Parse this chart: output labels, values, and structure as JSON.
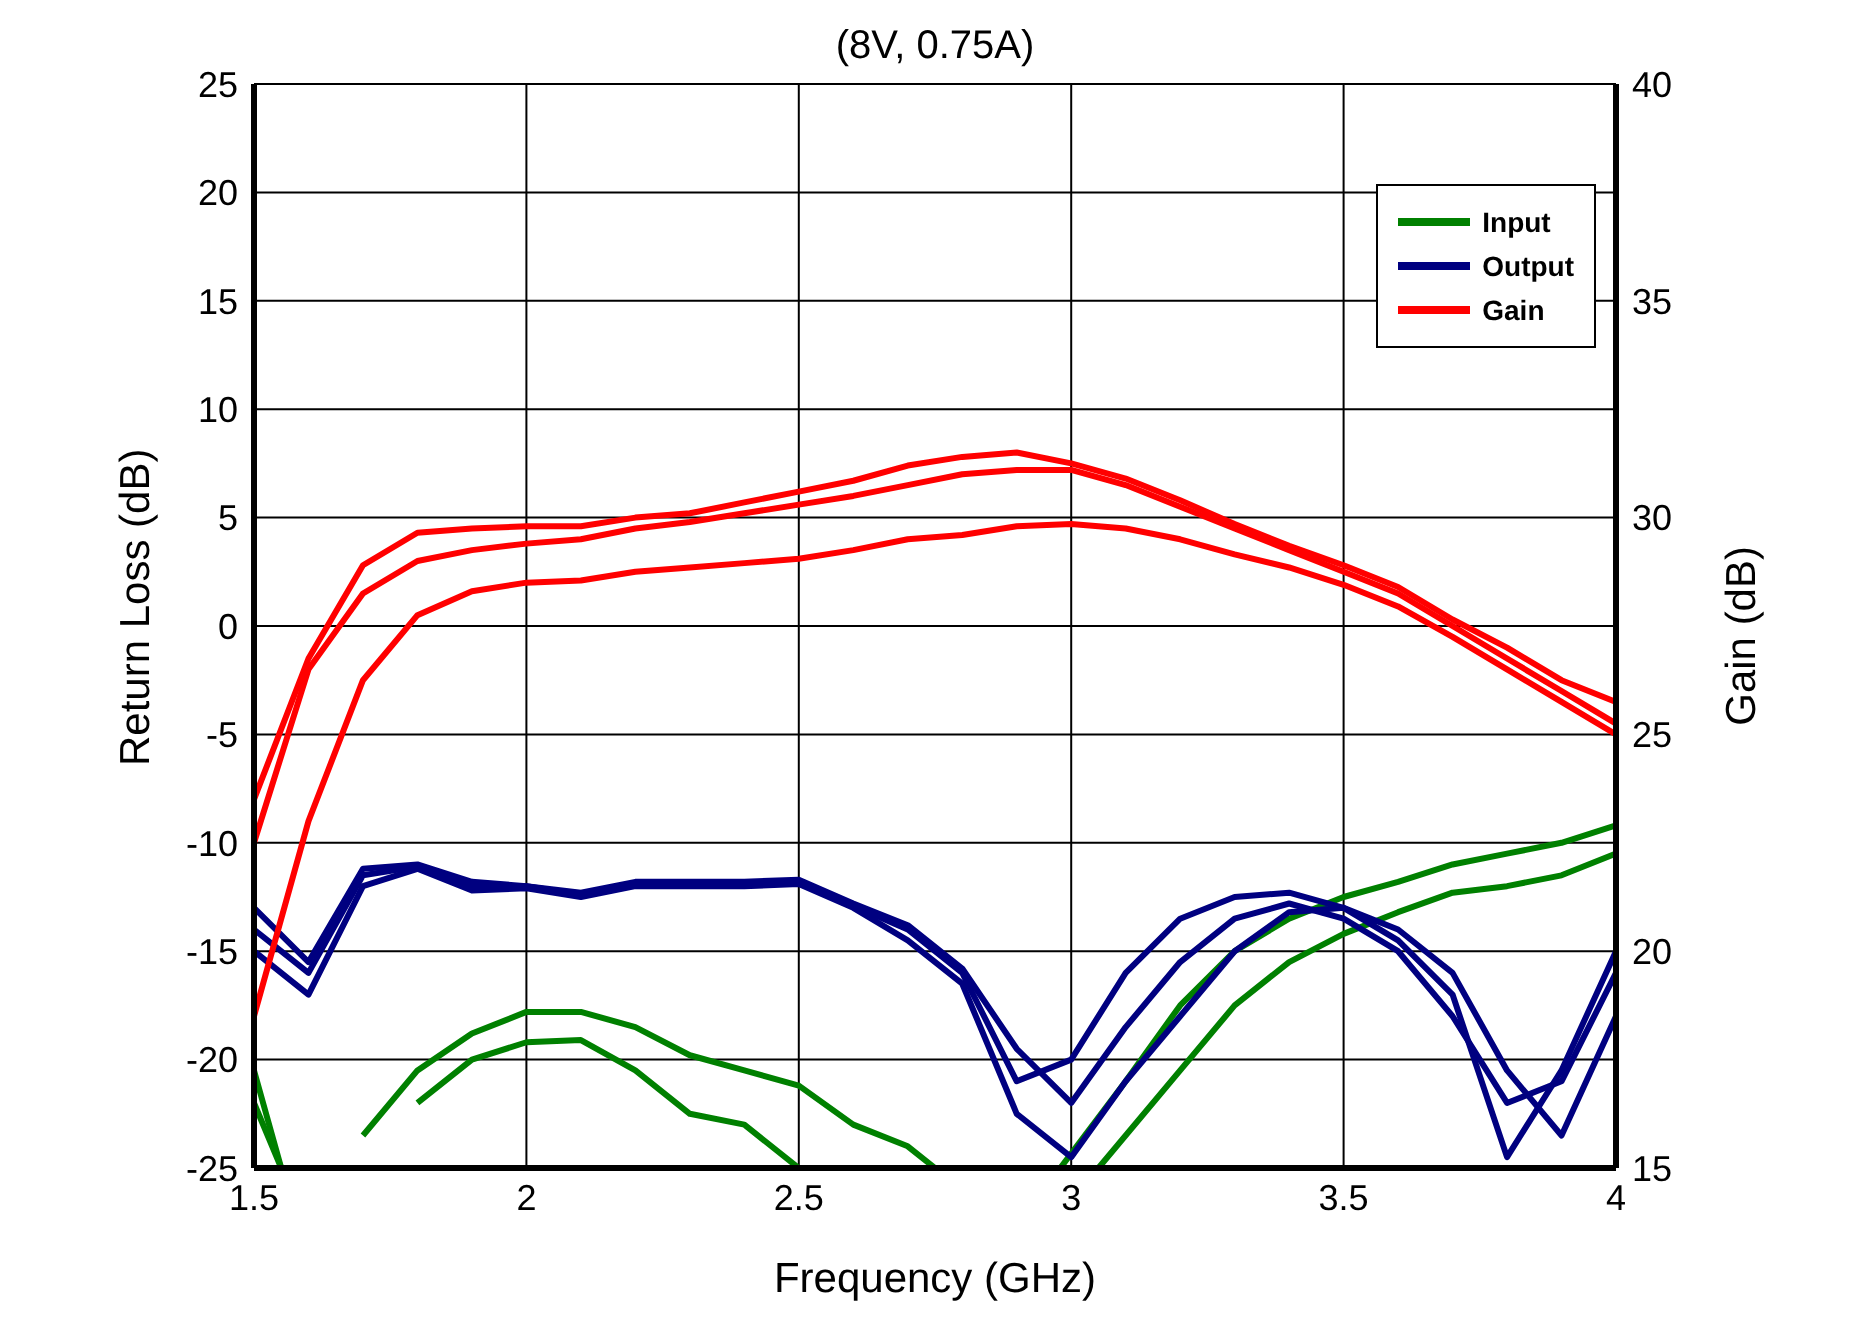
{
  "chart_data": {
    "type": "line",
    "title": "(8V, 0.75A)",
    "xlabel": "Frequency (GHz)",
    "ylabel": "Return Loss (dB)",
    "y2label": "Gain (dB)",
    "xlim": [
      1.5,
      4
    ],
    "xticks": [
      1.5,
      2,
      2.5,
      3,
      3.5,
      4
    ],
    "ylim": [
      -25,
      25
    ],
    "yticks": [
      -25,
      -20,
      -15,
      -10,
      -5,
      0,
      5,
      10,
      15,
      20,
      25
    ],
    "y2lim": [
      15,
      40
    ],
    "y2ticks": [
      15,
      20,
      25,
      30,
      35,
      40
    ],
    "grid": true,
    "legend": "top right",
    "marker": "none",
    "line_style": "solid",
    "series": [
      {
        "name": "Input",
        "color": "#008000",
        "x": [
          1.5,
          1.55,
          1.6,
          1.7,
          1.8,
          1.9,
          2.0,
          2.1,
          2.2,
          2.3,
          2.4,
          2.5,
          2.6,
          2.7,
          2.75,
          2.9,
          2.98,
          3.1,
          3.2,
          3.3,
          3.4,
          3.5,
          3.6,
          3.7,
          3.8,
          3.9,
          4.0
        ],
        "values": [
          -20.5,
          -25,
          null,
          -23.5,
          -20.5,
          -18.8,
          -17.8,
          -17.8,
          -18.5,
          -19.8,
          -20.5,
          -21.2,
          -23,
          -24,
          -25,
          null,
          -25,
          -21,
          -17.5,
          -15,
          -13.5,
          -12.5,
          -11.8,
          -11,
          -10.5,
          -10,
          -9.2
        ]
      },
      {
        "color": "#008000",
        "x": [
          1.5,
          1.55,
          1.7,
          1.8,
          1.9,
          2.0,
          2.1,
          2.2,
          2.3,
          2.4,
          2.5,
          2.9,
          3.05,
          3.2,
          3.3,
          3.4,
          3.5,
          3.6,
          3.7,
          3.8,
          3.9,
          4.0
        ],
        "values": [
          -22,
          -25,
          null,
          -22,
          -20,
          -19.2,
          -19.1,
          -20.5,
          -22.5,
          -23,
          -25,
          null,
          -25,
          -20.5,
          -17.5,
          -15.5,
          -14.2,
          -13.2,
          -12.3,
          -12,
          -11.5,
          -10.5
        ]
      },
      {
        "name": "Output",
        "color": "#000080",
        "x": [
          1.5,
          1.6,
          1.7,
          1.8,
          1.9,
          2.0,
          2.1,
          2.2,
          2.3,
          2.4,
          2.5,
          2.6,
          2.7,
          2.8,
          2.9,
          3.0,
          3.1,
          3.2,
          3.3,
          3.4,
          3.5,
          3.6,
          3.7,
          3.8,
          3.9,
          4.0
        ],
        "values": [
          -13,
          -15.5,
          -11.2,
          -11,
          -11.8,
          -12,
          -12.3,
          -11.8,
          -11.8,
          -11.8,
          -11.7,
          -12.8,
          -13.8,
          -15.8,
          -19.5,
          -22,
          -18.5,
          -15.5,
          -13.5,
          -12.8,
          -13.5,
          -15,
          -18,
          -22,
          -21,
          -16
        ]
      },
      {
        "color": "#000080",
        "x": [
          1.5,
          1.6,
          1.7,
          1.8,
          1.9,
          2.0,
          2.1,
          2.2,
          2.3,
          2.4,
          2.5,
          2.6,
          2.7,
          2.8,
          2.9,
          3.0,
          3.1,
          3.2,
          3.3,
          3.4,
          3.5,
          3.6,
          3.7,
          3.8,
          3.9,
          4.0
        ],
        "values": [
          -15,
          -17,
          -12,
          -11.2,
          -12.2,
          -12.1,
          -12.5,
          -12,
          -12,
          -12,
          -11.9,
          -13,
          -14.5,
          -16.5,
          -22.5,
          -24.5,
          -21,
          -18,
          -15,
          -13.2,
          -13,
          -14,
          -16,
          -20.5,
          -23.5,
          -18
        ]
      },
      {
        "color": "#000080",
        "x": [
          1.5,
          1.6,
          1.7,
          1.8,
          1.9,
          2.0,
          2.1,
          2.2,
          2.3,
          2.4,
          2.5,
          2.6,
          2.7,
          2.8,
          2.9,
          3.0,
          3.1,
          3.2,
          3.3,
          3.4,
          3.5,
          3.6,
          3.7,
          3.8,
          3.9,
          4.0
        ],
        "values": [
          -14,
          -16,
          -11.5,
          -11.1,
          -12,
          -12,
          -12.4,
          -11.9,
          -11.9,
          -11.9,
          -11.8,
          -12.9,
          -14,
          -16,
          -21,
          -20,
          -16,
          -13.5,
          -12.5,
          -12.3,
          -13,
          -14.5,
          -17,
          -24.5,
          -20.5,
          -15
        ]
      },
      {
        "name": "Gain",
        "color": "#ff0000",
        "axis": "y2",
        "x": [
          1.5,
          1.6,
          1.7,
          1.8,
          1.9,
          2.0,
          2.1,
          2.2,
          2.3,
          2.4,
          2.5,
          2.6,
          2.7,
          2.8,
          2.9,
          3.0,
          3.1,
          3.2,
          3.3,
          3.4,
          3.5,
          3.6,
          3.7,
          3.8,
          3.9,
          4.0
        ],
        "values": [
          22.5,
          26.5,
          28.25,
          29,
          29.25,
          29.4,
          29.5,
          29.75,
          29.9,
          30.1,
          30.3,
          30.5,
          30.75,
          31,
          31.1,
          31.1,
          30.75,
          30.25,
          29.75,
          29.25,
          28.75,
          28.25,
          27.5,
          26.75,
          26,
          25.25
        ]
      },
      {
        "color": "#ff0000",
        "axis": "y2",
        "x": [
          1.5,
          1.6,
          1.7,
          1.8,
          1.9,
          2.0,
          2.1,
          2.2,
          2.3,
          2.4,
          2.5,
          2.6,
          2.7,
          2.8,
          2.9,
          3.0,
          3.1,
          3.2,
          3.3,
          3.4,
          3.5,
          3.6,
          3.7,
          3.8,
          3.9,
          4.0
        ],
        "values": [
          23.5,
          26.75,
          28.9,
          29.65,
          29.75,
          29.8,
          29.8,
          30,
          30.1,
          30.35,
          30.6,
          30.85,
          31.2,
          31.4,
          31.5,
          31.25,
          30.9,
          30.4,
          29.85,
          29.35,
          28.9,
          28.4,
          27.65,
          27,
          26.25,
          25.75
        ]
      },
      {
        "color": "#ff0000",
        "axis": "y2",
        "x": [
          1.5,
          1.6,
          1.7,
          1.8,
          1.9,
          2.0,
          2.1,
          2.2,
          2.3,
          2.4,
          2.5,
          2.6,
          2.7,
          2.8,
          2.9,
          3.0,
          3.1,
          3.2,
          3.3,
          3.4,
          3.5,
          3.6,
          3.7,
          3.8,
          3.9,
          4.0
        ],
        "values": [
          18.5,
          23,
          26.25,
          27.75,
          28.3,
          28.5,
          28.55,
          28.75,
          28.85,
          28.95,
          29.05,
          29.25,
          29.5,
          29.6,
          29.8,
          29.85,
          29.75,
          29.5,
          29.15,
          28.85,
          28.45,
          27.95,
          27.25,
          26.5,
          25.75,
          25
        ]
      }
    ]
  }
}
